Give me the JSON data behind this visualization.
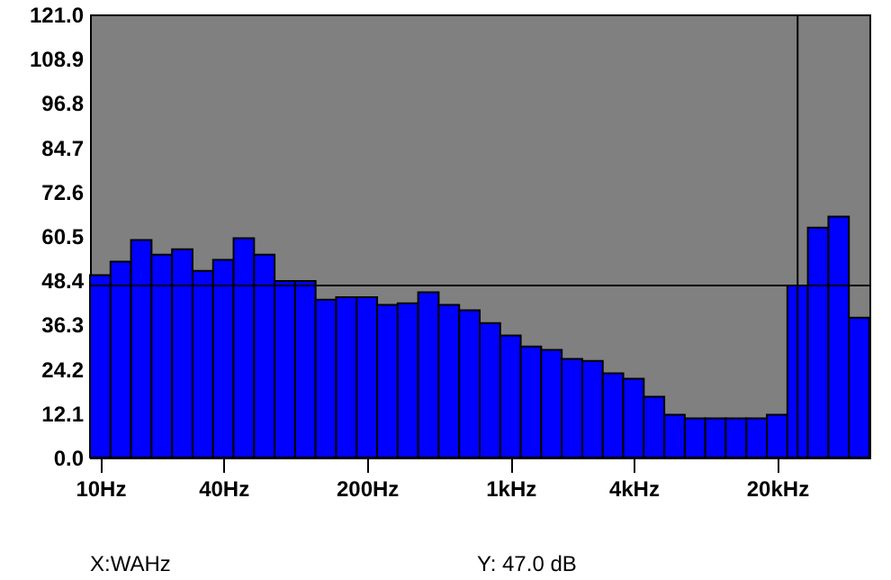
{
  "chart_data": {
    "type": "bar",
    "categories": [
      "10Hz",
      null,
      null,
      null,
      null,
      null,
      "40Hz",
      null,
      null,
      null,
      null,
      null,
      null,
      "200Hz",
      null,
      null,
      null,
      null,
      null,
      null,
      "1kHz",
      null,
      null,
      null,
      null,
      null,
      "4kHz",
      null,
      null,
      null,
      null,
      null,
      null,
      "20kHz",
      null,
      null,
      null,
      null
    ],
    "values": [
      49.8,
      53.5,
      59.4,
      55.4,
      56.9,
      51.0,
      54.0,
      59.9,
      55.4,
      48.2,
      48.2,
      43.1,
      43.8,
      43.8,
      41.7,
      42.1,
      45.1,
      41.7,
      40.2,
      36.7,
      33.3,
      30.3,
      29.4,
      26.9,
      26.4,
      23.0,
      21.5,
      16.6,
      11.7,
      10.7,
      10.7,
      10.7,
      10.7,
      11.7,
      47.0,
      62.8,
      65.8,
      38.2
    ],
    "color": "#0000ff",
    "ylim": [
      0,
      121
    ],
    "yticks": [
      {
        "value": 0,
        "label": "0.0"
      },
      {
        "value": 12.1,
        "label": "12.1"
      },
      {
        "value": 24.2,
        "label": "24.2"
      },
      {
        "value": 36.3,
        "label": "36.3"
      },
      {
        "value": 48.4,
        "label": "48.4"
      },
      {
        "value": 60.5,
        "label": "60.5"
      },
      {
        "value": 72.6,
        "label": "72.6"
      },
      {
        "value": 84.7,
        "label": "84.7"
      },
      {
        "value": 96.8,
        "label": "96.8"
      },
      {
        "value": 108.9,
        "label": "108.9"
      },
      {
        "value": 121,
        "label": "121.0"
      }
    ],
    "ref_lines": [
      {
        "axis": "y",
        "value": 47.0,
        "color": "#000000"
      }
    ],
    "annotations": [
      "X:WAHz",
      "Y: 47.0 dB"
    ]
  }
}
